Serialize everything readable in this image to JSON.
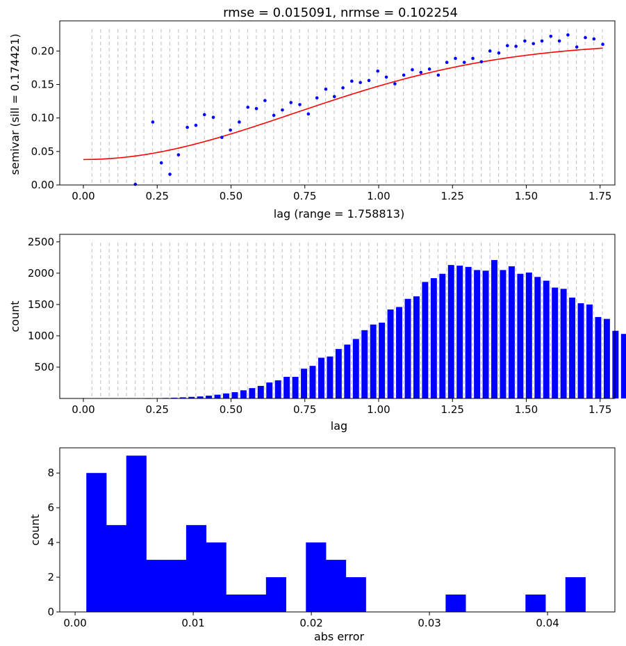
{
  "chart_data": [
    {
      "type": "scatter",
      "title": "rmse = 0.015091, nrmse = 0.102254",
      "xlabel": "lag (range = 1.758813)",
      "ylabel": "semivar (sill = 0.174421)",
      "xlim": [
        -0.08,
        1.8
      ],
      "ylim": [
        0.0,
        0.245
      ],
      "xticks": [
        0.0,
        0.25,
        0.5,
        0.75,
        1.0,
        1.25,
        1.5,
        1.75
      ],
      "xtick_labels": [
        "0.00",
        "0.25",
        "0.50",
        "0.75",
        "1.00",
        "1.25",
        "1.50",
        "1.75"
      ],
      "yticks": [
        0.0,
        0.05,
        0.1,
        0.15,
        0.2
      ],
      "ytick_labels": [
        "0.00",
        "0.05",
        "0.10",
        "0.15",
        "0.20"
      ],
      "bin_lines": {
        "start": 0.029,
        "step": 0.0293,
        "count": 60,
        "color": "#c8c8c8"
      },
      "points": {
        "color": "#0000ff",
        "x": [
          0.176,
          0.235,
          0.264,
          0.293,
          0.322,
          0.352,
          0.381,
          0.41,
          0.44,
          0.469,
          0.498,
          0.528,
          0.557,
          0.586,
          0.615,
          0.645,
          0.674,
          0.703,
          0.733,
          0.762,
          0.791,
          0.821,
          0.85,
          0.879,
          0.909,
          0.938,
          0.967,
          0.997,
          1.026,
          1.055,
          1.085,
          1.114,
          1.143,
          1.172,
          1.202,
          1.231,
          1.26,
          1.29,
          1.319,
          1.348,
          1.377,
          1.407,
          1.436,
          1.465,
          1.495,
          1.524,
          1.553,
          1.583,
          1.612,
          1.641,
          1.671,
          1.7,
          1.729,
          1.759
        ],
        "y": [
          0.001,
          0.094,
          0.033,
          0.016,
          0.045,
          0.086,
          0.089,
          0.105,
          0.101,
          0.071,
          0.082,
          0.094,
          0.116,
          0.114,
          0.126,
          0.104,
          0.112,
          0.123,
          0.12,
          0.106,
          0.13,
          0.143,
          0.132,
          0.145,
          0.155,
          0.153,
          0.156,
          0.17,
          0.161,
          0.151,
          0.164,
          0.172,
          0.168,
          0.173,
          0.164,
          0.183,
          0.189,
          0.183,
          0.189,
          0.184,
          0.2,
          0.197,
          0.208,
          0.207,
          0.215,
          0.211,
          0.215,
          0.222,
          0.215,
          0.224,
          0.206,
          0.22,
          0.218,
          0.21
        ]
      },
      "model": {
        "type": "gaussian",
        "color": "#ff0000",
        "nugget": 0.038,
        "sill": 0.174421,
        "range": 1.758813,
        "x_max": 1.759
      }
    },
    {
      "type": "bar",
      "xlabel": "lag",
      "ylabel": "count",
      "xlim": [
        -0.08,
        1.8
      ],
      "ylim": [
        0,
        2620
      ],
      "xticks": [
        0.0,
        0.25,
        0.5,
        0.75,
        1.0,
        1.25,
        1.5,
        1.75
      ],
      "xtick_labels": [
        "0.00",
        "0.25",
        "0.50",
        "0.75",
        "1.00",
        "1.25",
        "1.50",
        "1.75"
      ],
      "yticks": [
        500,
        1000,
        1500,
        2000,
        2500
      ],
      "ytick_labels": [
        "500",
        "1000",
        "1500",
        "2000",
        "2500"
      ],
      "bar_color": "#0000ff",
      "bin_lines": {
        "start": 0.029,
        "step": 0.0293,
        "count": 60,
        "color": "#c8c8c8"
      },
      "bins": {
        "first_center": 0.0147,
        "width": 0.0293
      },
      "values": [
        0,
        0,
        0,
        0,
        0,
        0,
        0,
        2,
        5,
        8,
        12,
        18,
        25,
        32,
        45,
        60,
        80,
        100,
        130,
        165,
        200,
        255,
        290,
        345,
        345,
        475,
        520,
        650,
        670,
        790,
        860,
        950,
        1090,
        1180,
        1210,
        1420,
        1460,
        1590,
        1630,
        1860,
        1920,
        1990,
        2130,
        2120,
        2100,
        2050,
        2040,
        2210,
        2050,
        2110,
        1990,
        2010,
        1940,
        1880,
        1770,
        1750,
        1610,
        1520,
        1500,
        1300,
        1270,
        1080,
        1030
      ]
    },
    {
      "type": "bar",
      "xlabel": "abs error",
      "ylabel": "count",
      "xlim": [
        -0.0013,
        0.0457
      ],
      "ylim": [
        0,
        9.45
      ],
      "xticks": [
        0.0,
        0.01,
        0.02,
        0.03,
        0.04
      ],
      "xtick_labels": [
        "0.00",
        "0.01",
        "0.02",
        "0.03",
        "0.04"
      ],
      "yticks": [
        0,
        2,
        4,
        6,
        8
      ],
      "ytick_labels": [
        "0",
        "2",
        "4",
        "6",
        "8"
      ],
      "bar_color": "#0000ff",
      "bins": {
        "start": 0.00095,
        "width": 0.00169
      },
      "values": [
        8,
        5,
        9,
        3,
        3,
        5,
        4,
        1,
        1,
        2,
        0,
        4,
        3,
        2,
        0,
        0,
        0,
        0,
        1,
        0,
        0,
        0,
        1,
        0,
        2
      ]
    }
  ]
}
